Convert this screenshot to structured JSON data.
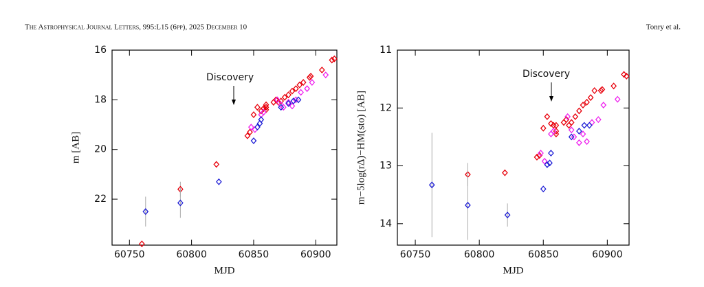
{
  "header": {
    "journal": "The Astrophysical Journal Letters, 995:L15 (6pp), 2025 December 10",
    "authors": "Tonry et al."
  },
  "chart_data": [
    {
      "type": "scatter",
      "xlabel": "MJD",
      "ylabel": "m [AB]",
      "annotation": "Discovery",
      "xlim": [
        60736,
        60917
      ],
      "xticks": [
        60750,
        60800,
        60850,
        60900
      ],
      "ylim": [
        23.85,
        16
      ],
      "yticks": [
        16,
        18,
        20,
        22
      ],
      "error_color": "#aaaaaa",
      "series": [
        {
          "color": "#e8000b",
          "x": [
            60760,
            60791,
            60820,
            60845,
            60847,
            60850,
            60853,
            60856,
            60858,
            60860,
            60860,
            60860,
            60866,
            60868,
            60870,
            60872,
            60875,
            60878,
            60881,
            60884,
            60887,
            60890,
            60895,
            60896,
            60905,
            60913,
            60915
          ],
          "values": [
            23.8,
            21.6,
            20.6,
            19.45,
            19.3,
            18.6,
            18.3,
            18.45,
            18.35,
            18.2,
            18.3,
            18.4,
            18.1,
            18.0,
            18.1,
            18.05,
            17.9,
            17.8,
            17.65,
            17.55,
            17.4,
            17.3,
            17.1,
            17.05,
            16.8,
            16.4,
            16.35
          ],
          "errors": [
            null,
            0.3,
            null,
            null,
            null,
            null,
            null,
            null,
            null,
            null,
            null,
            null,
            null,
            null,
            null,
            null,
            null,
            null,
            null,
            null,
            null,
            null,
            null,
            null,
            null,
            null,
            null
          ]
        },
        {
          "color": "#ee22ee",
          "x": [
            60848,
            60851,
            60856,
            60858,
            60869,
            60872,
            60874,
            60878,
            60881,
            60884,
            60888,
            60893,
            60897,
            60908
          ],
          "values": [
            19.1,
            19.2,
            18.6,
            18.5,
            18.0,
            18.2,
            18.3,
            18.1,
            18.25,
            18.0,
            17.7,
            17.55,
            17.3,
            17.0
          ]
        },
        {
          "color": "#1f1fd6",
          "x": [
            60763,
            60791,
            60822,
            60850,
            60853,
            60855,
            60856,
            60872,
            60878,
            60882,
            60886
          ],
          "values": [
            22.5,
            22.15,
            21.3,
            19.65,
            19.1,
            18.95,
            18.8,
            18.3,
            18.15,
            18.05,
            18.0
          ],
          "errors": [
            0.6,
            0.6,
            null,
            null,
            null,
            null,
            null,
            null,
            null,
            null,
            null
          ]
        }
      ]
    },
    {
      "type": "scatter",
      "xlabel": "MJD",
      "ylabel": "m−5log(rΔ)−HM(sto) [AB]",
      "annotation": "Discovery",
      "xlim": [
        60736,
        60917
      ],
      "xticks": [
        60750,
        60800,
        60850,
        60900
      ],
      "ylim": [
        14.37,
        11
      ],
      "yticks": [
        11,
        12,
        13,
        14
      ],
      "error_color": "#aaaaaa",
      "series": [
        {
          "color": "#e8000b",
          "x": [
            60760,
            60791,
            60820,
            60845,
            60847,
            60850,
            60853,
            60856,
            60858,
            60860,
            60860,
            60860,
            60866,
            60868,
            60870,
            60872,
            60875,
            60878,
            60881,
            60884,
            60887,
            60890,
            60895,
            60896,
            60905,
            60913,
            60915
          ],
          "values": [
            null,
            13.15,
            13.12,
            12.85,
            12.82,
            12.35,
            12.15,
            12.27,
            12.3,
            12.3,
            12.4,
            12.45,
            12.25,
            12.2,
            12.3,
            12.25,
            12.15,
            12.05,
            11.95,
            11.9,
            11.82,
            11.7,
            11.7,
            11.68,
            11.62,
            11.42,
            11.45
          ],
          "errors": [
            null,
            0.2,
            null,
            null,
            null,
            null,
            null,
            null,
            null,
            null,
            null,
            null,
            null,
            null,
            null,
            null,
            null,
            null,
            null,
            null,
            null,
            null,
            null,
            null,
            null,
            null,
            null
          ]
        },
        {
          "color": "#ee22ee",
          "x": [
            60848,
            60851,
            60856,
            60858,
            60869,
            60872,
            60874,
            60878,
            60881,
            60884,
            60888,
            60893,
            60897,
            60908
          ],
          "values": [
            12.78,
            12.92,
            12.45,
            12.4,
            12.15,
            12.38,
            12.5,
            12.6,
            12.45,
            12.58,
            12.25,
            12.2,
            11.95,
            11.85
          ]
        },
        {
          "color": "#1f1fd6",
          "x": [
            60763,
            60791,
            60822,
            60850,
            60853,
            60855,
            60856,
            60872,
            60878,
            60882,
            60886
          ],
          "values": [
            13.33,
            13.68,
            13.85,
            13.4,
            12.98,
            12.95,
            12.78,
            12.5,
            12.4,
            12.3,
            12.3
          ],
          "errors": [
            0.9,
            0.6,
            0.2,
            null,
            null,
            null,
            null,
            null,
            null,
            null,
            null
          ]
        }
      ]
    }
  ]
}
